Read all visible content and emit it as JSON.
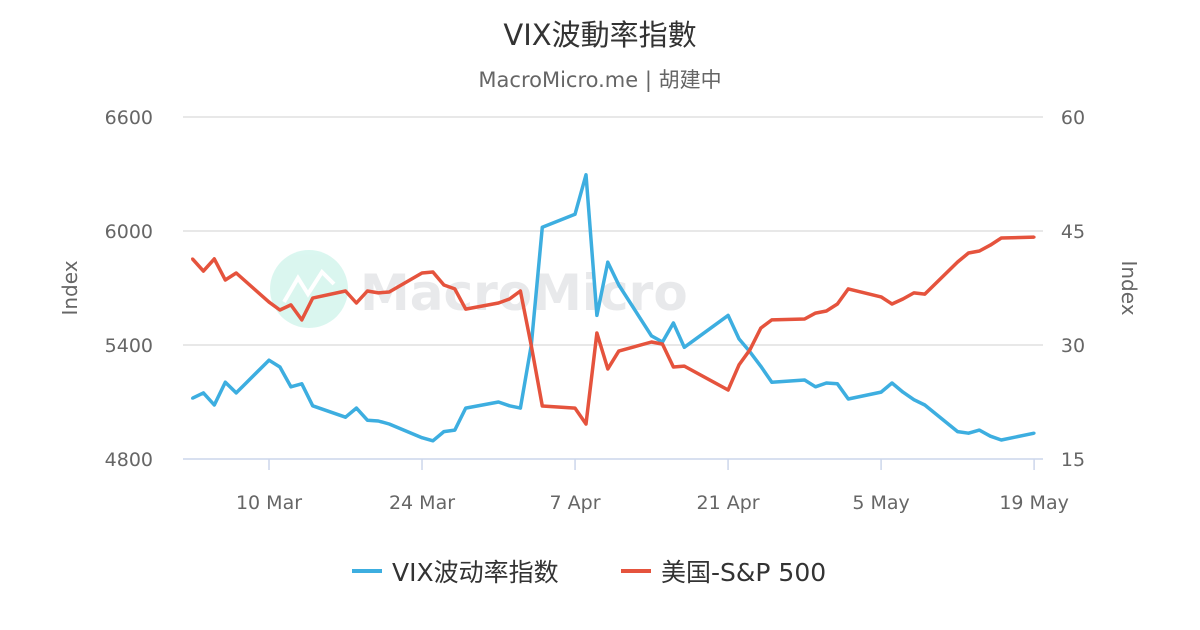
{
  "title": "VIX波動率指數",
  "subtitle": "MacroMicro.me | 胡建中",
  "watermark": "MacroMicro",
  "colors": {
    "vix": "#3daee0",
    "spx": "#e5533d",
    "grid": "#e0e0e0"
  },
  "chart_data": {
    "type": "line",
    "title": "VIX波動率指數",
    "x_ticks": [
      "10 Mar",
      "24 Mar",
      "7 Apr",
      "21 Apr",
      "5 May",
      "19 May"
    ],
    "left_axis": {
      "label": "Index",
      "ticks": [
        4800,
        5400,
        6000,
        6600
      ],
      "range": [
        4800,
        6600
      ]
    },
    "right_axis": {
      "label": "Index",
      "ticks": [
        15,
        30,
        45,
        60
      ],
      "range": [
        15,
        60
      ]
    },
    "grid": true,
    "legend": "bottom",
    "x": [
      "3 Mar",
      "4 Mar",
      "5 Mar",
      "6 Mar",
      "7 Mar",
      "10 Mar",
      "11 Mar",
      "12 Mar",
      "13 Mar",
      "14 Mar",
      "17 Mar",
      "18 Mar",
      "19 Mar",
      "20 Mar",
      "21 Mar",
      "24 Mar",
      "25 Mar",
      "26 Mar",
      "27 Mar",
      "28 Mar",
      "31 Mar",
      "1 Apr",
      "2 Apr",
      "3 Apr",
      "4 Apr",
      "7 Apr",
      "8 Apr",
      "9 Apr",
      "10 Apr",
      "11 Apr",
      "14 Apr",
      "15 Apr",
      "16 Apr",
      "17 Apr",
      "21 Apr",
      "22 Apr",
      "23 Apr",
      "24 Apr",
      "25 Apr",
      "28 Apr",
      "29 Apr",
      "30 Apr",
      "1 May",
      "2 May",
      "5 May",
      "6 May",
      "7 May",
      "8 May",
      "9 May",
      "12 May",
      "13 May",
      "14 May",
      "15 May",
      "16 May",
      "19 May"
    ],
    "series": [
      {
        "name": "VIX波动率指数",
        "axis": "right",
        "color": "#3daee0",
        "values": [
          23.0,
          23.7,
          22.1,
          25.1,
          23.7,
          28.0,
          27.1,
          24.5,
          24.9,
          22.0,
          20.5,
          21.7,
          20.1,
          20.0,
          19.6,
          17.8,
          17.4,
          18.6,
          18.8,
          21.7,
          22.5,
          22.0,
          21.7,
          30.0,
          45.5,
          47.2,
          52.4,
          33.9,
          40.9,
          37.9,
          31.2,
          30.4,
          32.9,
          29.7,
          33.9,
          30.8,
          29.1,
          27.2,
          25.1,
          25.4,
          24.5,
          25.0,
          24.9,
          22.9,
          23.8,
          25.0,
          23.8,
          22.8,
          22.1,
          18.6,
          18.4,
          18.8,
          18.0,
          17.5,
          18.4
        ]
      },
      {
        "name": "美国-S&P 500",
        "axis": "left",
        "color": "#e5533d",
        "values": [
          5853,
          5789,
          5853,
          5742,
          5779,
          5626,
          5584,
          5611,
          5532,
          5647,
          5684,
          5621,
          5684,
          5674,
          5679,
          5779,
          5784,
          5716,
          5695,
          5589,
          5621,
          5642,
          5684,
          5396,
          5079,
          5068,
          4984,
          5463,
          5274,
          5368,
          5416,
          5405,
          5284,
          5289,
          5163,
          5295,
          5375,
          5489,
          5532,
          5537,
          5568,
          5579,
          5616,
          5695,
          5653,
          5616,
          5642,
          5674,
          5668,
          5837,
          5884,
          5895,
          5926,
          5963,
          5968
        ]
      }
    ]
  }
}
